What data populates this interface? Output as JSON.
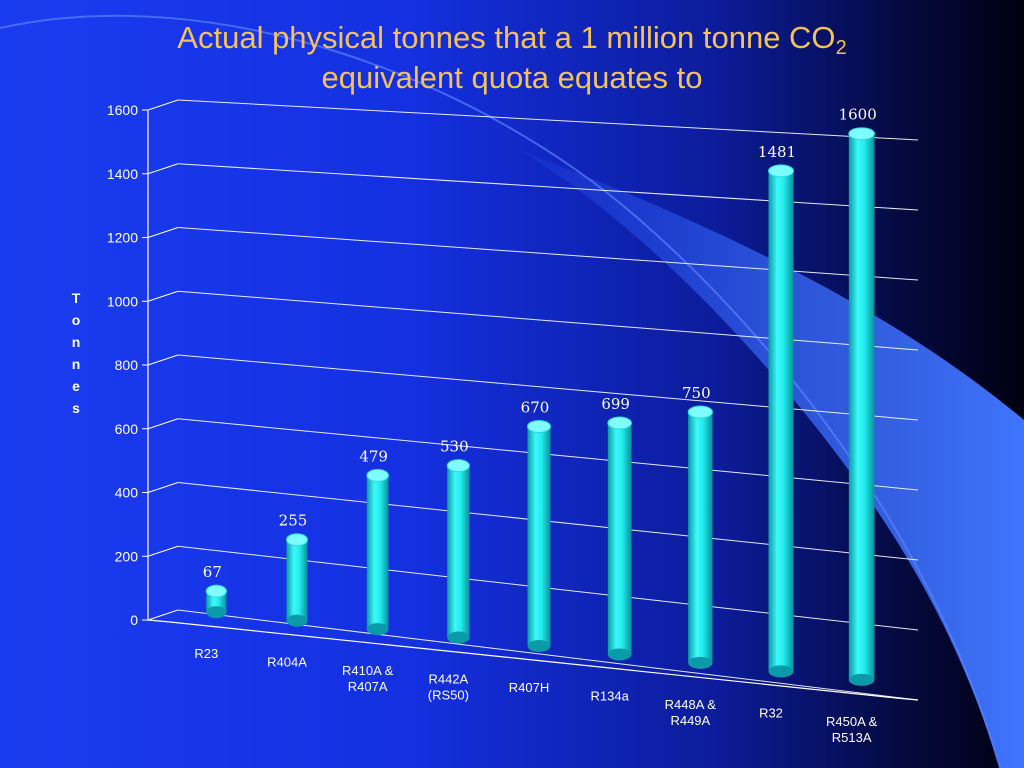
{
  "slide": {
    "title_line1": "Actual physical tonnes that a 1 million tonne CO",
    "title_subscript": "2",
    "title_line2": "equivalent quota equates to"
  },
  "colors": {
    "title": "#f5c25a",
    "bar": "#22eeee",
    "bar_dark": "#0a9aa8",
    "grid": "#ffffff",
    "text": "#ffffff"
  },
  "chart_data": {
    "type": "bar",
    "title": "Actual physical tonnes that a 1 million tonne CO2 equivalent quota equates to",
    "xlabel": "",
    "ylabel": "Tonnes",
    "ylim": [
      0,
      1600
    ],
    "yticks": [
      0,
      200,
      400,
      600,
      800,
      1000,
      1200,
      1400,
      1600
    ],
    "grid": true,
    "legend": "none",
    "categories": [
      [
        "R23"
      ],
      [
        "R404A"
      ],
      [
        "R410A &",
        "R407A"
      ],
      [
        "R442A",
        "(RS50)"
      ],
      [
        "R407H"
      ],
      [
        "R134a"
      ],
      [
        "R448A &",
        "R449A"
      ],
      [
        "R32"
      ],
      [
        "R450A &",
        "R513A"
      ]
    ],
    "values": [
      67,
      255,
      479,
      530,
      670,
      699,
      750,
      1481,
      1600
    ],
    "data_labels": [
      "67",
      "255",
      "479",
      "530",
      "670",
      "699",
      "750",
      "1481",
      "1600"
    ]
  }
}
